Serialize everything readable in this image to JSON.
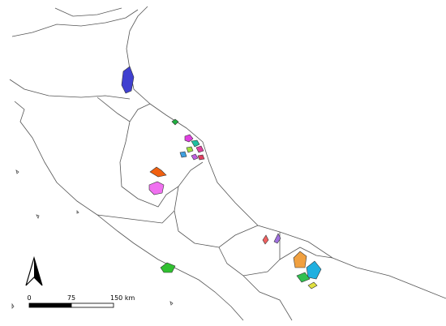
{
  "scale_bar": {
    "labels": [
      "0",
      "75",
      "150 km"
    ]
  }
}
